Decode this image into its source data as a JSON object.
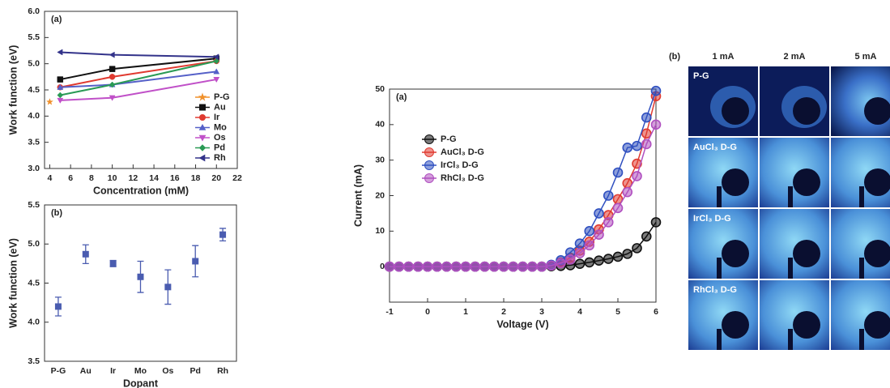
{
  "chart_data": [
    {
      "type": "line",
      "panel_label": "(a)",
      "x_label": "Concentration (mM)",
      "y_label": "Work function (eV)",
      "xlim": [
        3.5,
        22
      ],
      "xticks": [
        4,
        6,
        8,
        10,
        12,
        14,
        16,
        18,
        20,
        22
      ],
      "ylim": [
        3,
        6
      ],
      "yticks": [
        {
          "value": 3,
          "label": "3.0"
        },
        3.5,
        {
          "value": 4,
          "label": "4.0"
        },
        4.5,
        {
          "value": 5,
          "label": "5.0"
        },
        5.5,
        {
          "value": 6,
          "label": "6.0"
        }
      ],
      "legend": "lower right",
      "series": [
        {
          "name": "P-G",
          "color": "#f0902a",
          "marker": "star",
          "x": [
            4
          ],
          "values": [
            4.27
          ]
        },
        {
          "name": "Au",
          "color": "#111111",
          "marker": "square",
          "x": [
            5,
            10,
            20
          ],
          "values": [
            4.7,
            4.9,
            5.1
          ]
        },
        {
          "name": "Ir",
          "color": "#e03a30",
          "marker": "circle",
          "x": [
            5,
            10,
            20
          ],
          "values": [
            4.55,
            4.75,
            5.05
          ]
        },
        {
          "name": "Mo",
          "color": "#5560c8",
          "marker": "triangle-up",
          "x": [
            5,
            10,
            20
          ],
          "values": [
            4.55,
            4.6,
            4.85
          ]
        },
        {
          "name": "Os",
          "color": "#c050c8",
          "marker": "triangle-down",
          "x": [
            5,
            10,
            20
          ],
          "values": [
            4.3,
            4.35,
            4.7
          ]
        },
        {
          "name": "Pd",
          "color": "#2a9a55",
          "marker": "diamond",
          "x": [
            5,
            10,
            20
          ],
          "values": [
            4.4,
            4.6,
            5.05
          ]
        },
        {
          "name": "Rh",
          "color": "#33338a",
          "marker": "triangle-left",
          "x": [
            5,
            10,
            20
          ],
          "values": [
            5.22,
            5.17,
            5.13
          ]
        }
      ]
    },
    {
      "type": "errorbar",
      "panel_label": "(b)",
      "x_label": "Dopant",
      "y_label": "Work function (eV)",
      "categories": [
        "P-G",
        "Au",
        "Ir",
        "Mo",
        "Os",
        "Pd",
        "Rh"
      ],
      "values": [
        4.2,
        4.87,
        4.75,
        4.58,
        4.45,
        4.78,
        5.12
      ],
      "errors": [
        0.12,
        0.12,
        0.04,
        0.2,
        0.22,
        0.2,
        0.08
      ],
      "color": "#4a5cb0",
      "ylim": [
        3.5,
        5.5
      ],
      "yticks": [
        3.5,
        {
          "value": 4,
          "label": "4.0"
        },
        4.5,
        {
          "value": 5,
          "label": "5.0"
        },
        5.5
      ]
    },
    {
      "type": "line",
      "panel_label": "(a)",
      "x_label": "Voltage (V)",
      "y_label": "Current (mA)",
      "xlim": [
        -1,
        6
      ],
      "xticks": [
        -1,
        0,
        1,
        2,
        3,
        4,
        5,
        6
      ],
      "ylim": [
        -10,
        50
      ],
      "yticks": [
        0,
        10,
        20,
        30,
        40,
        50
      ],
      "legend": "upper left",
      "x": [
        -1,
        -0.75,
        -0.5,
        -0.25,
        0,
        0.25,
        0.5,
        0.75,
        1,
        1.25,
        1.5,
        1.75,
        2,
        2.25,
        2.5,
        2.75,
        3,
        3.25,
        3.5,
        3.75,
        4,
        4.25,
        4.5,
        4.75,
        5,
        5.25,
        5.5,
        5.75,
        6
      ],
      "series": [
        {
          "name": "P-G",
          "color": "#111111",
          "marker": "circle",
          "values": [
            0,
            0,
            0,
            0,
            0,
            0,
            0,
            0,
            0,
            0,
            0,
            0,
            0,
            0,
            0,
            0,
            0,
            0.1,
            0.2,
            0.4,
            0.8,
            1.2,
            1.7,
            2.2,
            2.8,
            3.6,
            5.2,
            8.5,
            12.5
          ]
        },
        {
          "name": "AuCl₃ D-G",
          "color": "#e03a30",
          "marker": "circle",
          "values": [
            0,
            0,
            0,
            0,
            0,
            0,
            0,
            0,
            0,
            0,
            0,
            0,
            0,
            0,
            0,
            0,
            0,
            0.4,
            1.2,
            2.5,
            4.5,
            7,
            10.5,
            14.5,
            19,
            23.5,
            29,
            37.5,
            48
          ]
        },
        {
          "name": "IrCl₃ D-G",
          "color": "#3050c0",
          "marker": "circle",
          "values": [
            0,
            0,
            0,
            0,
            0,
            0,
            0,
            0,
            0,
            0,
            0,
            0,
            0,
            0,
            0,
            0,
            0,
            0.5,
            1.8,
            4,
            6.5,
            10,
            15,
            20,
            26.5,
            33.5,
            34,
            42,
            49.5
          ]
        },
        {
          "name": "RhCl₃ D-G",
          "color": "#b050c0",
          "marker": "circle",
          "values": [
            0,
            0,
            0,
            0,
            0,
            0,
            0,
            0,
            0,
            0,
            0,
            0,
            0,
            0,
            0,
            0,
            0,
            0.3,
            1,
            2,
            3.8,
            6,
            9,
            12.5,
            16.5,
            21,
            25.5,
            34.5,
            40
          ]
        }
      ]
    }
  ],
  "image_panel": {
    "label": "(b)",
    "columns": [
      "1 mA",
      "2 mA",
      "5 mA"
    ],
    "rows": [
      "P-G",
      "AuCl₃ D-G",
      "IrCl₃ D-G",
      "RhCl₃ D-G"
    ]
  }
}
